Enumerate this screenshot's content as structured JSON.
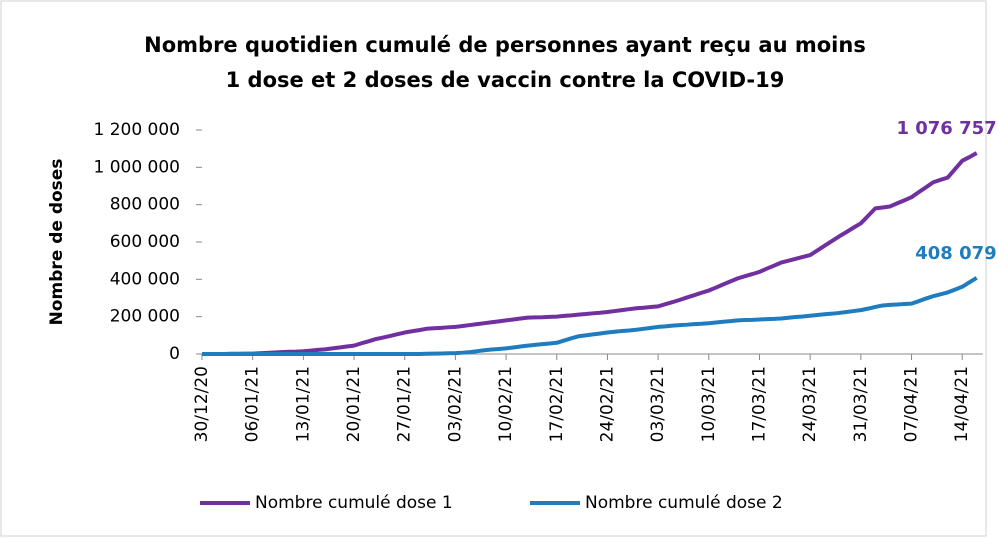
{
  "chart_data": {
    "type": "line",
    "title": [
      "Nombre quotidien cumulé de personnes ayant reçu au moins",
      "1 dose et 2 doses de vaccin contre la COVID-19"
    ],
    "y_label": "Nombre de doses",
    "categories": [
      "30/12/20",
      null,
      null,
      null,
      null,
      null,
      null,
      "06/01/21",
      null,
      null,
      null,
      null,
      null,
      null,
      "13/01/21",
      null,
      null,
      null,
      null,
      null,
      null,
      "20/01/21",
      null,
      null,
      null,
      null,
      null,
      null,
      "27/01/21",
      null,
      null,
      null,
      null,
      null,
      null,
      "03/02/21",
      null,
      null,
      null,
      null,
      null,
      null,
      "10/02/21",
      null,
      null,
      null,
      null,
      null,
      null,
      "17/02/21",
      null,
      null,
      null,
      null,
      null,
      null,
      "24/02/21",
      null,
      null,
      null,
      null,
      null,
      null,
      "03/03/21",
      null,
      null,
      null,
      null,
      null,
      null,
      "10/03/21",
      null,
      null,
      null,
      null,
      null,
      null,
      "17/03/21",
      null,
      null,
      null,
      null,
      null,
      null,
      "24/03/21",
      null,
      null,
      null,
      null,
      null,
      null,
      "31/03/21",
      null,
      null,
      null,
      null,
      null,
      null,
      "07/04/21",
      null,
      null,
      null,
      null,
      null,
      null,
      "14/04/21",
      null,
      null
    ],
    "ylim": [
      0,
      1200000
    ],
    "yticks": [
      0,
      {
        "value": 200000,
        "label": "200 000"
      },
      {
        "value": 400000,
        "label": "400 000"
      },
      {
        "value": 600000,
        "label": "600 000"
      },
      {
        "value": 800000,
        "label": "800 000"
      },
      {
        "value": 1000000,
        "label": "1 000 000"
      },
      {
        "value": 1200000,
        "label": "1 200 000"
      }
    ],
    "series": [
      {
        "name": "Nombre cumulé dose 1",
        "color": "#7030a0",
        "values": [
          0,
          0,
          0,
          0,
          1000,
          1000,
          2000,
          2000,
          4000,
          6000,
          8000,
          10000,
          12000,
          13000,
          15000,
          18000,
          22000,
          25000,
          30000,
          35000,
          40000,
          45000,
          57000,
          68000,
          80000,
          88000,
          97000,
          106000,
          115000,
          122000,
          128000,
          135000,
          138000,
          140000,
          143000,
          145000,
          150000,
          155000,
          160000,
          165000,
          170000,
          175000,
          180000,
          185000,
          190000,
          195000,
          196000,
          197000,
          199000,
          200000,
          204000,
          207000,
          211000,
          214000,
          218000,
          221000,
          225000,
          230000,
          235000,
          240000,
          245000,
          248000,
          252000,
          255000,
          267000,
          278000,
          290000,
          303000,
          315000,
          328000,
          340000,
          356000,
          373000,
          389000,
          405000,
          417000,
          428000,
          440000,
          457000,
          473000,
          490000,
          500000,
          510000,
          520000,
          530000,
          555000,
          580000,
          605000,
          630000,
          653000,
          677000,
          700000,
          740000,
          780000,
          785000,
          790000,
          807000,
          823000,
          840000,
          867000,
          893000,
          920000,
          933000,
          945000,
          990000,
          1035000,
          1055000,
          1076757
        ],
        "value_labels": [
          null,
          null,
          null,
          null,
          null,
          null,
          null,
          null,
          null,
          null,
          null,
          null,
          null,
          null,
          null,
          null,
          null,
          null,
          null,
          null,
          null,
          null,
          null,
          null,
          null,
          null,
          null,
          null,
          null,
          null,
          null,
          null,
          null,
          null,
          null,
          null,
          null,
          null,
          null,
          null,
          null,
          null,
          null,
          null,
          null,
          null,
          null,
          null,
          null,
          null,
          null,
          null,
          null,
          null,
          null,
          null,
          null,
          null,
          null,
          null,
          null,
          null,
          null,
          null,
          null,
          null,
          null,
          null,
          null,
          null,
          null,
          null,
          null,
          null,
          null,
          null,
          null,
          null,
          null,
          null,
          null,
          null,
          null,
          null,
          null,
          null,
          null,
          null,
          null,
          null,
          null,
          null,
          null,
          null,
          null,
          null,
          null,
          null,
          null,
          null,
          null,
          null,
          null,
          null,
          null,
          null,
          null,
          "1 076 757"
        ]
      },
      {
        "name": "Nombre cumulé dose 2",
        "color": "#1f7dbf",
        "values": [
          0,
          0,
          0,
          0,
          0,
          0,
          0,
          0,
          0,
          0,
          0,
          0,
          0,
          0,
          0,
          0,
          0,
          0,
          0,
          0,
          0,
          0,
          0,
          0,
          0,
          0,
          0,
          0,
          0,
          0,
          0,
          1000,
          2000,
          3000,
          4000,
          5000,
          7000,
          10000,
          15000,
          20000,
          24000,
          27000,
          30000,
          35000,
          40000,
          45000,
          49000,
          53000,
          56000,
          60000,
          72000,
          84000,
          95000,
          100000,
          105000,
          110000,
          115000,
          119000,
          123000,
          126000,
          130000,
          135000,
          140000,
          145000,
          148000,
          152000,
          155000,
          157000,
          160000,
          162000,
          165000,
          169000,
          173000,
          176000,
          180000,
          182000,
          183000,
          185000,
          187000,
          188000,
          190000,
          194000,
          198000,
          201000,
          205000,
          209000,
          213000,
          216000,
          220000,
          225000,
          230000,
          235000,
          243000,
          252000,
          260000,
          263000,
          265000,
          268000,
          270000,
          283000,
          297000,
          310000,
          320000,
          330000,
          345000,
          360000,
          384000,
          408079
        ],
        "value_labels": [
          null,
          null,
          null,
          null,
          null,
          null,
          null,
          null,
          null,
          null,
          null,
          null,
          null,
          null,
          null,
          null,
          null,
          null,
          null,
          null,
          null,
          null,
          null,
          null,
          null,
          null,
          null,
          null,
          null,
          null,
          null,
          null,
          null,
          null,
          null,
          null,
          null,
          null,
          null,
          null,
          null,
          null,
          null,
          null,
          null,
          null,
          null,
          null,
          null,
          null,
          null,
          null,
          null,
          null,
          null,
          null,
          null,
          null,
          null,
          null,
          null,
          null,
          null,
          null,
          null,
          null,
          null,
          null,
          null,
          null,
          null,
          null,
          null,
          null,
          null,
          null,
          null,
          null,
          null,
          null,
          null,
          null,
          null,
          null,
          null,
          null,
          null,
          null,
          null,
          null,
          null,
          null,
          null,
          null,
          null,
          null,
          null,
          null,
          null,
          null,
          null,
          null,
          null,
          null,
          null,
          null,
          null,
          "408 079"
        ]
      }
    ]
  }
}
